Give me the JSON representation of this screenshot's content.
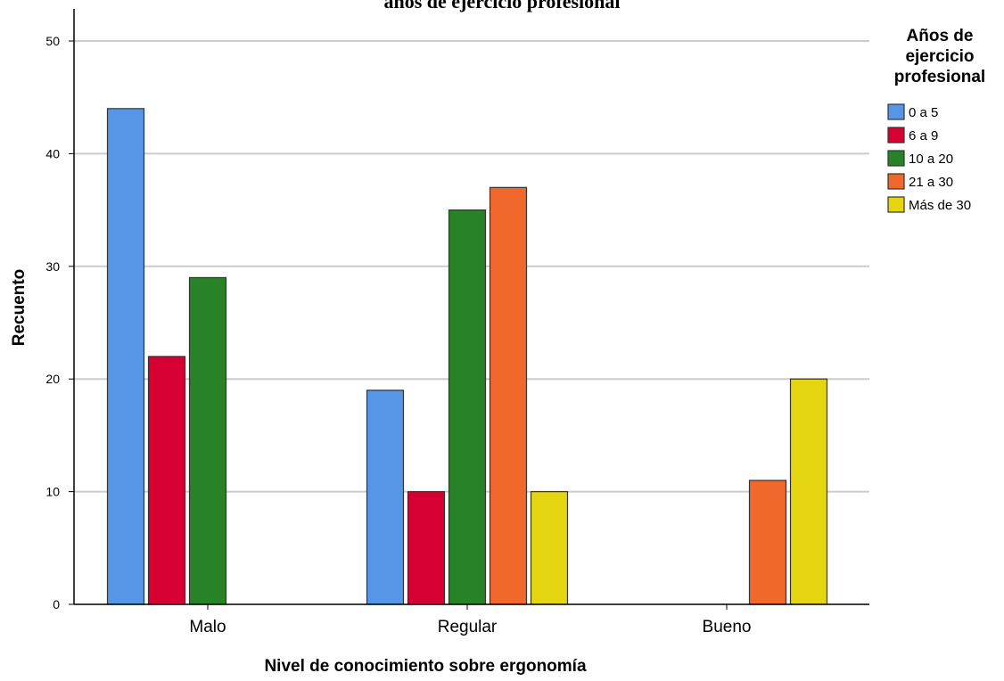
{
  "chart_data": {
    "type": "bar",
    "title": "años de ejercicio profesional",
    "xlabel": "Nivel de conocimiento sobre ergonomía",
    "ylabel": "Recuento",
    "ylim": [
      0,
      50
    ],
    "yticks": [
      0,
      10,
      20,
      30,
      40,
      50
    ],
    "categories": [
      "Malo",
      "Regular",
      "Bueno"
    ],
    "grid": "horizontal",
    "legend": {
      "title_lines": [
        "Años de",
        "ejercicio",
        "profesional"
      ],
      "placement": "right"
    },
    "series": [
      {
        "name": "0 a 5",
        "color": "#5596e6",
        "values": [
          44,
          19,
          null
        ]
      },
      {
        "name": "6 a 9",
        "color": "#d70033",
        "values": [
          22,
          10,
          null
        ]
      },
      {
        "name": "10 a 20",
        "color": "#288228",
        "values": [
          29,
          35,
          null
        ]
      },
      {
        "name": "21 a 30",
        "color": "#f0682c",
        "values": [
          null,
          37,
          11
        ]
      },
      {
        "name": "Más de 30",
        "color": "#e4d510",
        "values": [
          null,
          10,
          20
        ]
      }
    ]
  }
}
